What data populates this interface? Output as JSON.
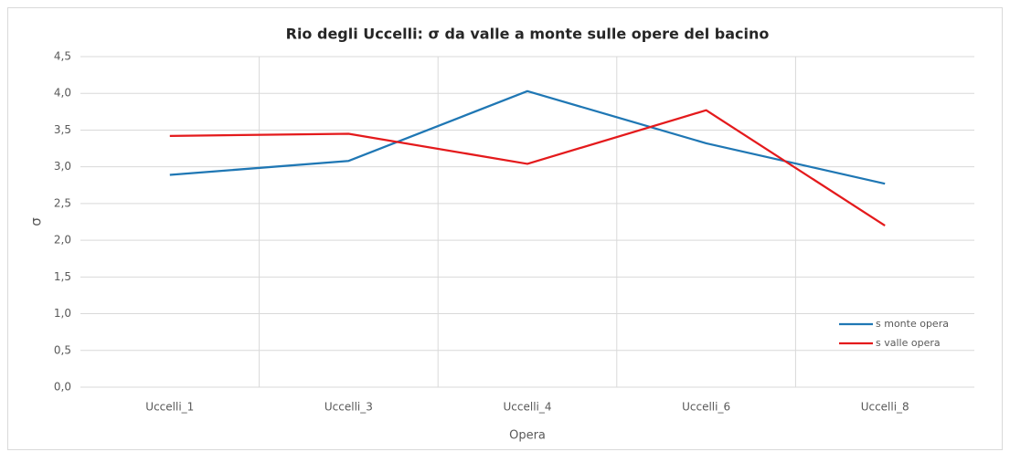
{
  "chart_data": {
    "type": "line",
    "title": "Rio degli Uccelli: σ da valle a monte sulle opere del bacino",
    "x_label": "Opera",
    "y_label": "σ",
    "categories": [
      "Uccelli_1",
      "Uccelli_3",
      "Uccelli_4",
      "Uccelli_6",
      "Uccelli_8"
    ],
    "series": [
      {
        "name": "s monte opera",
        "color": "#1f77b4",
        "values": [
          2.89,
          3.08,
          4.03,
          3.32,
          2.77
        ]
      },
      {
        "name": "s valle opera",
        "color": "#e41a1c",
        "values": [
          3.42,
          3.45,
          3.04,
          3.77,
          2.2
        ]
      }
    ],
    "ylim": [
      0,
      4.5
    ],
    "yticks": [
      {
        "value": 0,
        "label": "0,0"
      },
      {
        "value": 0.5,
        "label": "0,5"
      },
      {
        "value": 1,
        "label": "1,0"
      },
      {
        "value": 1.5,
        "label": "1,5"
      },
      {
        "value": 2,
        "label": "2,0"
      },
      {
        "value": 2.5,
        "label": "2,5"
      },
      {
        "value": 3,
        "label": "3,0"
      },
      {
        "value": 3.5,
        "label": "3,5"
      },
      {
        "value": 4,
        "label": "4,0"
      },
      {
        "value": 4.5,
        "label": "4,5"
      }
    ],
    "grid": true,
    "legend": "right"
  }
}
